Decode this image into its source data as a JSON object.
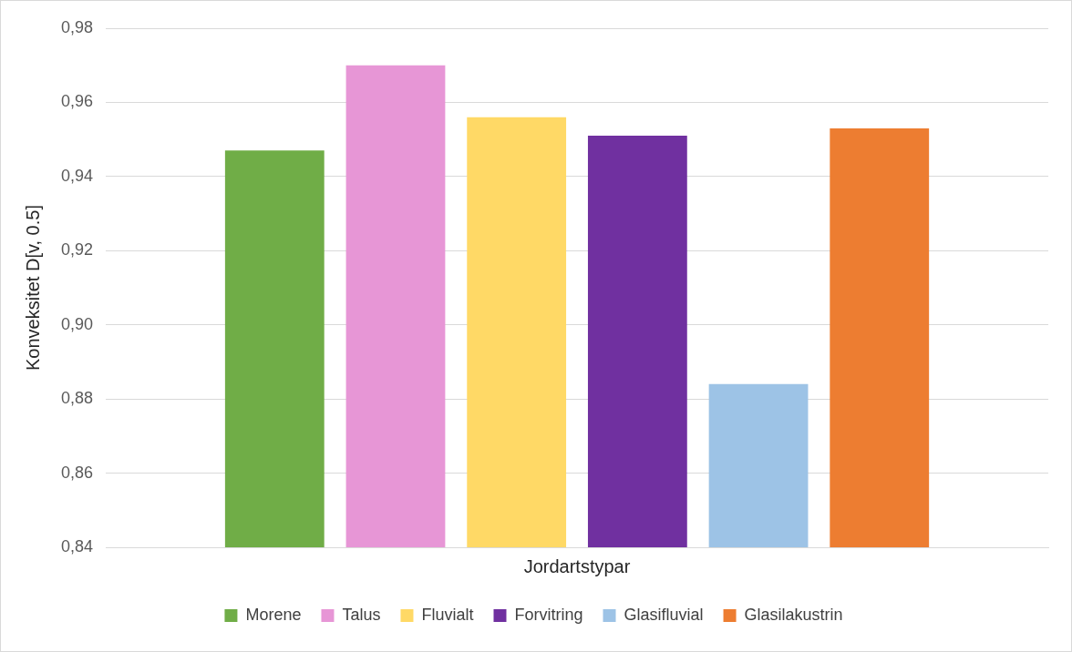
{
  "chart_data": {
    "type": "bar",
    "ylabel": "Konveksitet D[v, 0.5]",
    "categories": [
      "Jordartstypar"
    ],
    "series": [
      {
        "name": "Morene",
        "color": "#70ad47",
        "values": [
          0.947
        ]
      },
      {
        "name": "Talus",
        "color": "#e796d6",
        "values": [
          0.97
        ]
      },
      {
        "name": "Fluvialt",
        "color": "#ffd966",
        "values": [
          0.956
        ]
      },
      {
        "name": "Forvitring",
        "color": "#7030a0",
        "values": [
          0.951
        ]
      },
      {
        "name": "Glasifluvial",
        "color": "#9dc3e6",
        "values": [
          0.884
        ]
      },
      {
        "name": "Glasilakustrin",
        "color": "#ed7d31",
        "values": [
          0.953
        ]
      }
    ],
    "ylim": [
      0.84,
      0.98
    ],
    "yticks": [
      {
        "value": 0.84,
        "label": "0,84"
      },
      {
        "value": 0.86,
        "label": "0,86"
      },
      {
        "value": 0.88,
        "label": "0,88"
      },
      {
        "value": 0.9,
        "label": "0,90"
      },
      {
        "value": 0.92,
        "label": "0,92"
      },
      {
        "value": 0.94,
        "label": "0,94"
      },
      {
        "value": 0.96,
        "label": "0,96"
      },
      {
        "value": 0.98,
        "label": "0,98"
      }
    ],
    "grid": "y",
    "legend": "bottom"
  }
}
